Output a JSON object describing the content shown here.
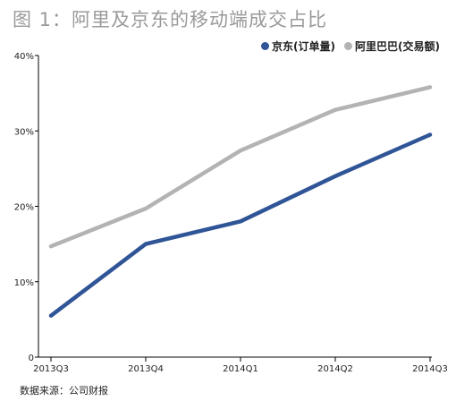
{
  "title": "图 1：阿里及京东的移动端成交占比",
  "source": "数据来源：公司财报",
  "colors": {
    "jd": "#2f5597",
    "alibaba": "#b3b3b3",
    "axis": "#000000",
    "title": "#9a9a9a"
  },
  "chart_data": {
    "type": "line",
    "title": "图 1：阿里及京东的移动端成交占比",
    "xlabel": "",
    "ylabel": "",
    "categories": [
      "2013Q3",
      "2013Q4",
      "2014Q1",
      "2014Q2",
      "2014Q3"
    ],
    "y_ticks": [
      "0",
      "10%",
      "20%",
      "30%",
      "40%"
    ],
    "ylim": [
      0,
      40
    ],
    "grid": false,
    "legend": "top-right",
    "series": [
      {
        "name": "京东(订单量)",
        "color": "#2f5597",
        "values": [
          5.5,
          15.0,
          18.0,
          24.0,
          29.5
        ]
      },
      {
        "name": "阿里巴巴(交易额)",
        "color": "#b3b3b3",
        "values": [
          14.7,
          19.7,
          27.4,
          32.8,
          35.8
        ]
      }
    ]
  }
}
